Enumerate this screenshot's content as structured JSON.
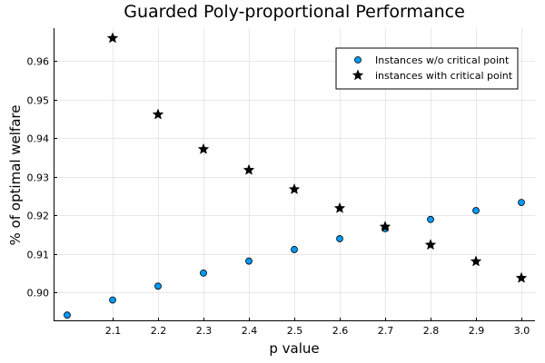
{
  "chart_data": {
    "type": "scatter",
    "title": "Guarded Poly-proportional Performance",
    "xlabel": "p value",
    "ylabel": "% of optimal welfare",
    "xlim": [
      1.97,
      3.03
    ],
    "ylim": [
      0.8925,
      0.9685
    ],
    "xticks": [
      "2.1",
      "2.2",
      "2.3",
      "2.4",
      "2.5",
      "2.6",
      "2.7",
      "2.8",
      "2.9",
      "3.0"
    ],
    "yticks": [
      "0.90",
      "0.91",
      "0.92",
      "0.93",
      "0.94",
      "0.95",
      "0.96"
    ],
    "grid": true,
    "legend_position": "top-right",
    "series": [
      {
        "name": "Instances w/o critical point",
        "marker": "circle",
        "color": "#009af9",
        "x": [
          2.0,
          2.1,
          2.2,
          2.3,
          2.4,
          2.5,
          2.6,
          2.7,
          2.8,
          2.9,
          3.0
        ],
        "y": [
          0.8941,
          0.898,
          0.9016,
          0.905,
          0.9081,
          0.9111,
          0.9139,
          0.9165,
          0.9189,
          0.9212,
          0.9233
        ]
      },
      {
        "name": "instances with critical point",
        "marker": "star",
        "color": "#000000",
        "x": [
          2.1,
          2.2,
          2.3,
          2.4,
          2.5,
          2.6,
          2.7,
          2.8,
          2.9,
          3.0
        ],
        "y": [
          0.9659,
          0.9461,
          0.9371,
          0.9317,
          0.9267,
          0.9218,
          0.917,
          0.9123,
          0.908,
          0.9037
        ]
      }
    ]
  }
}
